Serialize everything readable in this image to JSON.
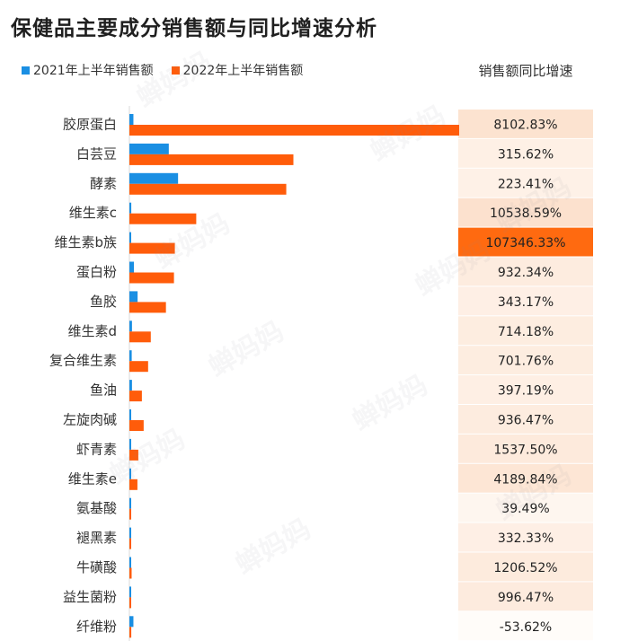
{
  "title": "保健品主要成分销售额与同比增速分析",
  "watermark": "蝉妈妈",
  "colors": {
    "series_2021": "#1a8fe3",
    "series_2022": "#ff5c0a",
    "growth_max": "#ff6a10",
    "growth_base": "#fdeadd"
  },
  "chart_data": {
    "type": "bar",
    "orientation": "horizontal",
    "title": "保健品主要成分销售额与同比增速分析",
    "categories": [
      "胶原蛋白",
      "白芸豆",
      "酵素",
      "维生素c",
      "维生素b族",
      "蛋白粉",
      "鱼胶",
      "维生素d",
      "复合维生素",
      "鱼油",
      "左旋肉碱",
      "虾青素",
      "维生素e",
      "氨基酸",
      "褪黑素",
      "牛磺酸",
      "益生菌粉",
      "纤维粉"
    ],
    "series": [
      {
        "name": "2021年上半年销售额",
        "values": [
          0.45,
          4.42,
          5.46,
          0.21,
          0.004,
          0.51,
          0.92,
          0.29,
          0.26,
          0.29,
          0.16,
          0.06,
          0.02,
          0.14,
          0.03,
          0.02,
          0.01,
          0.45
        ]
      },
      {
        "name": "2022年上半年销售额",
        "values": [
          37.0,
          18.4,
          17.6,
          7.5,
          5.1,
          5.0,
          4.1,
          2.4,
          2.1,
          1.4,
          1.6,
          1.0,
          0.9,
          0.2,
          0.14,
          0.25,
          0.12,
          0.21
        ]
      }
    ],
    "growth": {
      "header": "销售额同比增速",
      "labels": [
        "8102.83%",
        "315.62%",
        "223.41%",
        "10538.59%",
        "107346.33%",
        "932.34%",
        "343.17%",
        "714.18%",
        "701.76%",
        "397.19%",
        "936.47%",
        "1537.50%",
        "4189.84%",
        "39.49%",
        "332.33%",
        "1206.52%",
        "996.47%",
        "-53.62%"
      ],
      "values": [
        8102.83,
        315.62,
        223.41,
        10538.59,
        107346.33,
        932.34,
        343.17,
        714.18,
        701.76,
        397.19,
        936.47,
        1537.5,
        4189.84,
        39.49,
        332.33,
        1206.52,
        996.47,
        -53.62
      ]
    },
    "xlim": [
      0,
      37.0
    ],
    "grid": false,
    "legend": "top-left"
  }
}
